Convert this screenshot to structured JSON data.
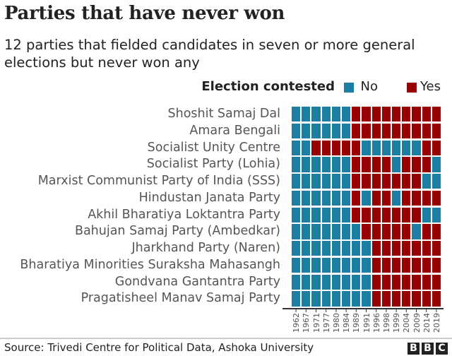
{
  "chart_data": {
    "type": "heatmap",
    "title": "Parties that have never won",
    "subtitle": "12 parties that fielded candidates in seven or more general elections but never won any",
    "legend_title": "Election contested",
    "legend": [
      {
        "label": "No",
        "color": "#1b7fa3"
      },
      {
        "label": "Yes",
        "color": "#990000"
      }
    ],
    "legend_placement": "top-right",
    "columns": [
      "1962",
      "1967",
      "1971",
      "1977",
      "1980",
      "1984",
      "1989",
      "1991",
      "1996",
      "1998",
      "1999",
      "2004",
      "2009",
      "2014",
      "2019"
    ],
    "rows": [
      {
        "party": "Shoshit Samaj Dal",
        "contested": [
          0,
          0,
          0,
          0,
          0,
          0,
          1,
          1,
          1,
          1,
          1,
          1,
          1,
          1,
          1
        ]
      },
      {
        "party": "Amara Bengali",
        "contested": [
          0,
          0,
          0,
          0,
          0,
          0,
          1,
          1,
          1,
          1,
          1,
          1,
          1,
          1,
          1
        ]
      },
      {
        "party": "Socialist Unity Centre",
        "contested": [
          0,
          0,
          1,
          1,
          1,
          1,
          1,
          0,
          0,
          0,
          0,
          0,
          0,
          1,
          1
        ]
      },
      {
        "party": "Socialist Party (Lohia)",
        "contested": [
          0,
          0,
          0,
          0,
          0,
          0,
          1,
          1,
          1,
          1,
          0,
          1,
          1,
          1,
          0
        ]
      },
      {
        "party": "Marxist Communist Party of India (SSS)",
        "contested": [
          0,
          0,
          0,
          0,
          0,
          0,
          1,
          1,
          1,
          1,
          1,
          1,
          1,
          0,
          0
        ]
      },
      {
        "party": "Hindustan Janata Party",
        "contested": [
          0,
          0,
          0,
          0,
          0,
          0,
          1,
          0,
          1,
          1,
          0,
          1,
          1,
          1,
          1
        ]
      },
      {
        "party": "Akhil Bharatiya Loktantra Party",
        "contested": [
          0,
          0,
          0,
          0,
          0,
          0,
          1,
          1,
          1,
          1,
          1,
          1,
          1,
          0,
          0
        ]
      },
      {
        "party": "Bahujan Samaj Party (Ambedkar)",
        "contested": [
          0,
          0,
          0,
          0,
          0,
          0,
          0,
          1,
          1,
          1,
          1,
          1,
          0,
          1,
          1
        ]
      },
      {
        "party": "Jharkhand Party (Naren)",
        "contested": [
          0,
          0,
          0,
          0,
          0,
          0,
          0,
          0,
          1,
          1,
          1,
          1,
          1,
          1,
          1
        ]
      },
      {
        "party": "Bharatiya Minorities Suraksha Mahasangh",
        "contested": [
          0,
          0,
          0,
          0,
          0,
          0,
          0,
          0,
          1,
          1,
          1,
          1,
          1,
          1,
          1
        ]
      },
      {
        "party": "Gondvana Gantantra Party",
        "contested": [
          0,
          0,
          0,
          0,
          0,
          0,
          0,
          0,
          1,
          1,
          1,
          1,
          1,
          1,
          1
        ]
      },
      {
        "party": "Pragatisheel Manav Samaj Party",
        "contested": [
          0,
          0,
          0,
          0,
          0,
          0,
          0,
          0,
          1,
          1,
          1,
          1,
          1,
          1,
          1
        ]
      }
    ]
  },
  "footer": {
    "source": "Source: Trivedi Centre for Political Data, Ashoka University",
    "logo": "BBC"
  }
}
